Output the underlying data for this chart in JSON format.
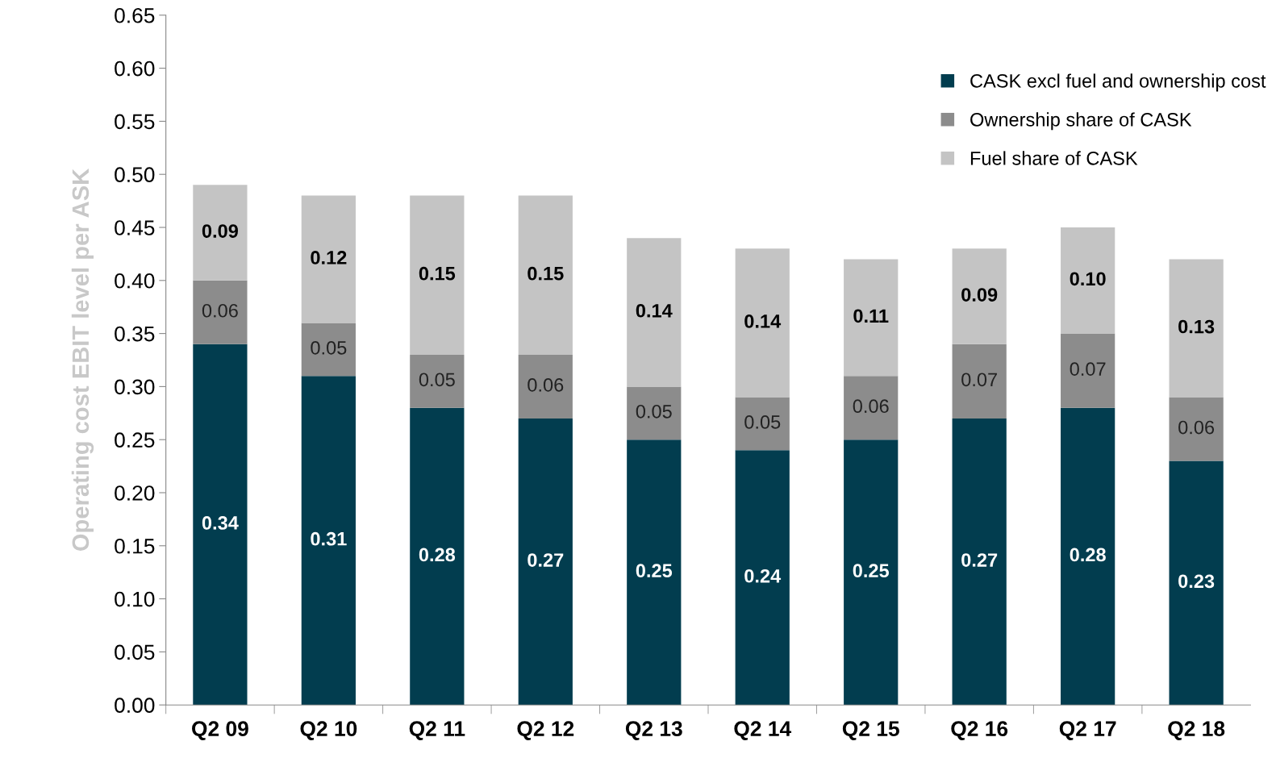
{
  "chart_data": {
    "type": "bar",
    "stacked": true,
    "ylabel": "Operating cost EBIT level per ASK",
    "categories": [
      "Q2 09",
      "Q2 10",
      "Q2 11",
      "Q2 12",
      "Q2 13",
      "Q2 14",
      "Q2 15",
      "Q2 16",
      "Q2 17",
      "Q2 18"
    ],
    "series": [
      {
        "name": "CASK excl fuel and ownership cost",
        "color": "#023d4f",
        "values": [
          0.34,
          0.31,
          0.28,
          0.27,
          0.25,
          0.24,
          0.25,
          0.27,
          0.28,
          0.23
        ],
        "value_labels": [
          "0.34",
          "0.31",
          "0.28",
          "0.27",
          "0.25",
          "0.24",
          "0.25",
          "0.27",
          "0.28",
          "0.23"
        ]
      },
      {
        "name": "Ownership share of CASK",
        "color": "#8c8c8c",
        "values": [
          0.06,
          0.05,
          0.05,
          0.06,
          0.05,
          0.05,
          0.06,
          0.07,
          0.07,
          0.06
        ],
        "value_labels": [
          "0.06",
          "0.05",
          "0.05",
          "0.06",
          "0.05",
          "0.05",
          "0.06",
          "0.07",
          "0.07",
          "0.06"
        ]
      },
      {
        "name": "Fuel share of CASK",
        "color": "#c4c4c4",
        "values": [
          0.09,
          0.12,
          0.15,
          0.15,
          0.14,
          0.14,
          0.11,
          0.09,
          0.1,
          0.13
        ],
        "value_labels": [
          "0.09",
          "0.12",
          "0.15",
          "0.15",
          "0.14",
          "0.14",
          "0.11",
          "0.09",
          "0.10",
          "0.13"
        ]
      }
    ],
    "ylim": [
      0,
      0.65
    ],
    "yticks": [
      {
        "value": 0,
        "label": "0.00"
      },
      {
        "value": 0.05,
        "label": "0.05"
      },
      {
        "value": 0.1,
        "label": "0.10"
      },
      {
        "value": 0.15,
        "label": "0.15"
      },
      {
        "value": 0.2,
        "label": "0.20"
      },
      {
        "value": 0.25,
        "label": "0.25"
      },
      {
        "value": 0.3,
        "label": "0.30"
      },
      {
        "value": 0.35,
        "label": "0.35"
      },
      {
        "value": 0.4,
        "label": "0.40"
      },
      {
        "value": 0.45,
        "label": "0.45"
      },
      {
        "value": 0.5,
        "label": "0.50"
      },
      {
        "value": 0.55,
        "label": "0.55"
      },
      {
        "value": 0.6,
        "label": "0.60"
      },
      {
        "value": 0.65,
        "label": "0.65"
      }
    ],
    "grid": false,
    "legend": "top right"
  }
}
